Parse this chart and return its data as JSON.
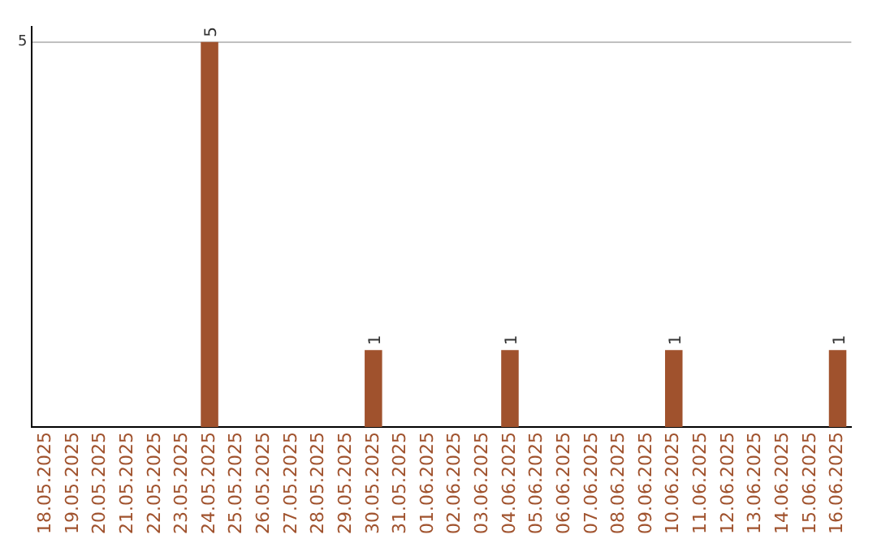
{
  "chart_data": {
    "type": "bar",
    "categories": [
      "18.05.2025",
      "19.05.2025",
      "20.05.2025",
      "21.05.2025",
      "22.05.2025",
      "23.05.2025",
      "24.05.2025",
      "25.05.2025",
      "26.05.2025",
      "27.05.2025",
      "28.05.2025",
      "29.05.2025",
      "30.05.2025",
      "31.05.2025",
      "01.06.2025",
      "02.06.2025",
      "03.06.2025",
      "04.06.2025",
      "05.06.2025",
      "06.06.2025",
      "07.06.2025",
      "08.06.2025",
      "09.06.2025",
      "10.06.2025",
      "11.06.2025",
      "12.06.2025",
      "13.06.2025",
      "14.06.2025",
      "15.06.2025",
      "16.06.2025"
    ],
    "values": [
      0,
      0,
      0,
      0,
      0,
      0,
      5,
      0,
      0,
      0,
      0,
      0,
      1,
      0,
      0,
      0,
      0,
      1,
      0,
      0,
      0,
      0,
      0,
      1,
      0,
      0,
      0,
      0,
      0,
      1
    ],
    "value_labels": [
      null,
      null,
      null,
      null,
      null,
      null,
      "5",
      null,
      null,
      null,
      null,
      null,
      "1",
      null,
      null,
      null,
      null,
      "1",
      null,
      null,
      null,
      null,
      null,
      "1",
      null,
      null,
      null,
      null,
      null,
      "1"
    ],
    "color": "#a0522d",
    "ylim": [
      0,
      5.2
    ],
    "yticks": [
      5
    ],
    "grid": "y",
    "legend": false
  }
}
